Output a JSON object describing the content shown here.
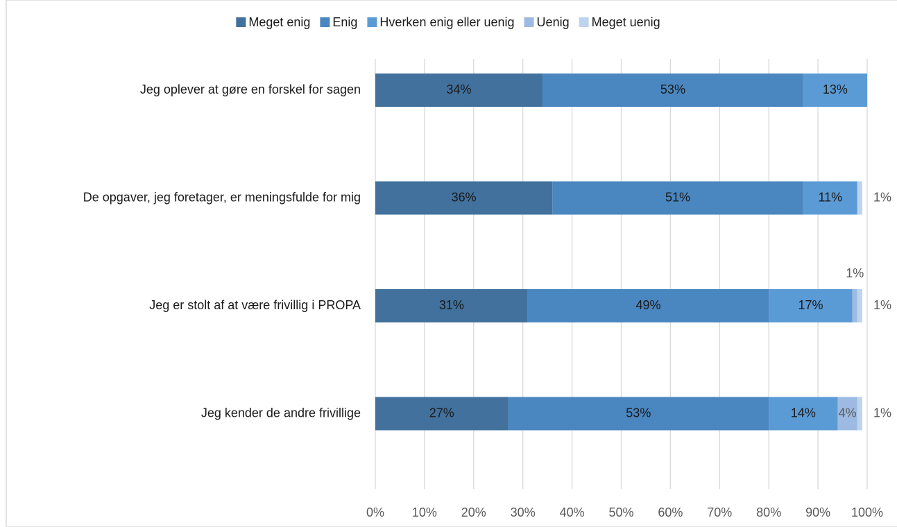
{
  "chart_data": {
    "type": "stacked_barh",
    "categories": [
      "Jeg oplever at gøre en forskel for sagen",
      "De opgaver, jeg foretager, er meningsfulde for mig",
      "Jeg er stolt af at være frivillig i PROPA",
      "Jeg kender de andre frivillige"
    ],
    "series": [
      {
        "name": "Meget enig",
        "color": "#41719c",
        "values": [
          34,
          36,
          31,
          27
        ],
        "value_labels": [
          "34%",
          "36%",
          "31%",
          "27%"
        ]
      },
      {
        "name": "Enig",
        "color": "#4a86bf",
        "values": [
          53,
          51,
          49,
          53
        ],
        "value_labels": [
          "53%",
          "51%",
          "49%",
          "53%"
        ]
      },
      {
        "name": "Hverken enig eller uenig",
        "color": "#5b9bd5",
        "values": [
          13,
          11,
          17,
          14
        ],
        "value_labels": [
          "13%",
          "11%",
          "17%",
          "14%"
        ]
      },
      {
        "name": "Uenig",
        "color": "#9dbbe2",
        "values": [
          null,
          null,
          1,
          4
        ],
        "value_labels": [
          null,
          null,
          "1%",
          "4%"
        ]
      },
      {
        "name": "Meget uenig",
        "color": "#bdd3ee",
        "values": [
          null,
          1,
          1,
          1
        ],
        "value_labels": [
          null,
          "1%",
          "1%",
          "1%"
        ]
      }
    ],
    "xlim": [
      0,
      100
    ],
    "xticks": [
      {
        "value": 0,
        "label": "0%"
      },
      {
        "value": 10,
        "label": "10%"
      },
      {
        "value": 20,
        "label": "20%"
      },
      {
        "value": 30,
        "label": "30%"
      },
      {
        "value": 40,
        "label": "40%"
      },
      {
        "value": 50,
        "label": "50%"
      },
      {
        "value": 60,
        "label": "60%"
      },
      {
        "value": 70,
        "label": "70%"
      },
      {
        "value": 80,
        "label": "80%"
      },
      {
        "value": 90,
        "label": "90%"
      },
      {
        "value": 100,
        "label": "100%"
      }
    ],
    "grid": true,
    "legend": "top"
  }
}
